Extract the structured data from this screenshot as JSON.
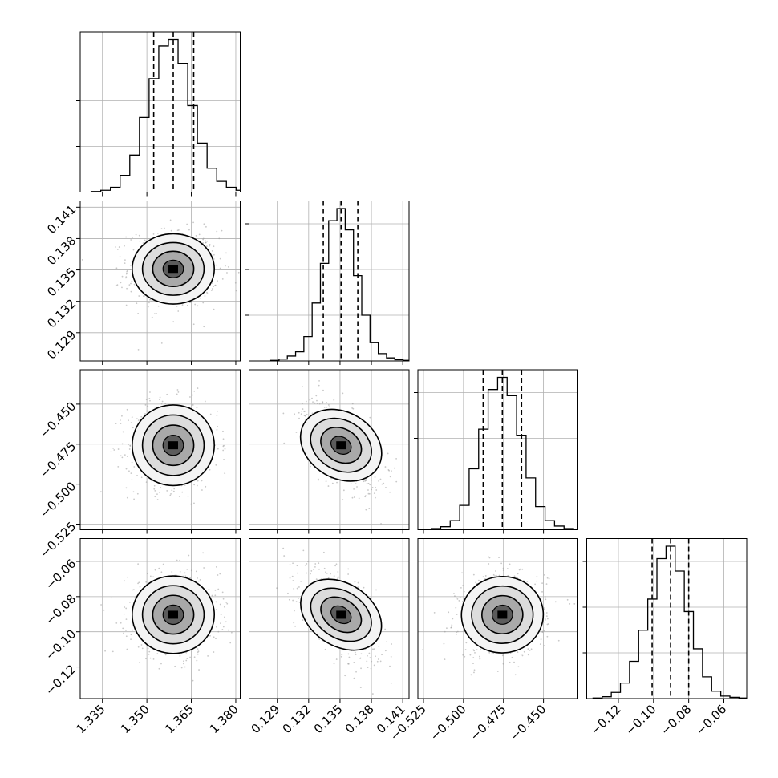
{
  "chart_data": {
    "type": "corner",
    "grid": true,
    "params": [
      {
        "index": 0,
        "range": [
          1.3275,
          1.3815
        ],
        "ticks": [
          1.335,
          1.35,
          1.365,
          1.38
        ],
        "tick_labels": [
          "1.335",
          "1.350",
          "1.365",
          "1.380"
        ],
        "quantiles": [
          1.3523,
          1.3589,
          1.3658
        ],
        "mean": 1.3589,
        "sd": 0.0066
      },
      {
        "index": 1,
        "range": [
          0.1263,
          0.1416
        ],
        "ticks": [
          0.129,
          0.132,
          0.135,
          0.138,
          0.141
        ],
        "tick_labels": [
          "0.129",
          "0.132",
          "0.135",
          "0.138",
          "0.141"
        ],
        "quantiles": [
          0.1334,
          0.1351,
          0.1367
        ],
        "mean": 0.1351,
        "sd": 0.0016
      },
      {
        "index": 2,
        "range": [
          -0.5285,
          -0.4285
        ],
        "ticks": [
          -0.525,
          -0.5,
          -0.475,
          -0.45
        ],
        "tick_labels": [
          "−0.525",
          "−0.500",
          "−0.475",
          "−0.450"
        ],
        "quantiles": [
          -0.4877,
          -0.4757,
          -0.4637
        ],
        "mean": -0.4757,
        "sd": 0.012
      },
      {
        "index": 3,
        "range": [
          -0.138,
          -0.047
        ],
        "ticks": [
          -0.12,
          -0.1,
          -0.08,
          -0.06
        ],
        "tick_labels": [
          "−0.12",
          "−0.10",
          "−0.08",
          "−0.06"
        ],
        "quantiles": [
          -0.1008,
          -0.0903,
          -0.08
        ],
        "mean": -0.0903,
        "sd": 0.0105
      }
    ],
    "correlations": [
      {
        "i": 1,
        "j": 0,
        "rho": 0.0
      },
      {
        "i": 2,
        "j": 0,
        "rho": 0.0
      },
      {
        "i": 2,
        "j": 1,
        "rho": -0.55
      },
      {
        "i": 3,
        "j": 0,
        "rho": 0.0
      },
      {
        "i": 3,
        "j": 1,
        "rho": -0.6
      },
      {
        "i": 3,
        "j": 2,
        "rho": 0.05
      }
    ],
    "histograms": [
      {
        "param": 0,
        "counts": [
          1,
          3,
          8,
          28,
          62,
          125,
          190,
          245,
          255,
          215,
          145,
          82,
          40,
          18,
          8,
          3,
          1
        ]
      },
      {
        "param": 1,
        "counts": [
          1,
          3,
          8,
          15,
          40,
          95,
          160,
          230,
          250,
          215,
          140,
          75,
          30,
          12,
          5,
          2,
          1
        ]
      },
      {
        "param": 2,
        "counts": [
          1,
          2,
          5,
          15,
          40,
          100,
          165,
          230,
          250,
          220,
          155,
          85,
          38,
          15,
          6,
          2,
          1
        ]
      },
      {
        "param": 3,
        "counts": [
          1,
          3,
          10,
          25,
          60,
          110,
          160,
          225,
          245,
          205,
          140,
          80,
          35,
          12,
          4,
          2,
          1
        ]
      }
    ]
  }
}
